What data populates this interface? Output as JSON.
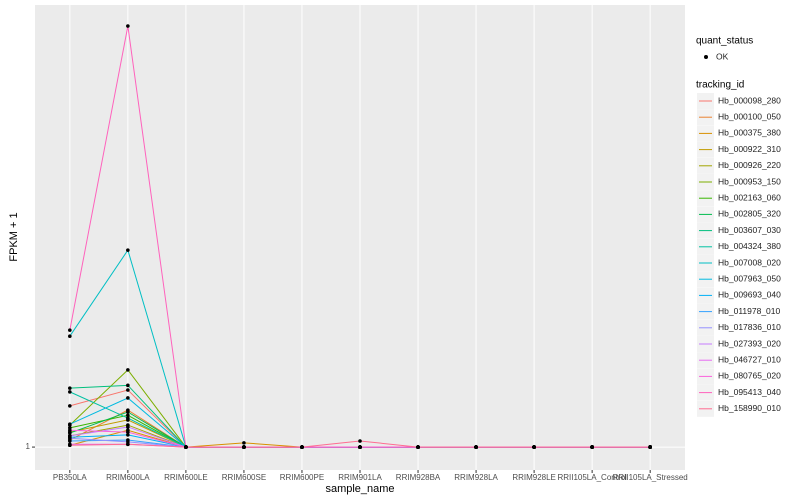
{
  "chart_data": {
    "type": "line",
    "x_label": "sample_name",
    "y_label": "FPKM + 1",
    "categories": [
      "PB350LA",
      "RRIM600LA",
      "RRIM600LE",
      "RRIM600SE",
      "RRIM600PE",
      "RRIM901LA",
      "RRIM928BA",
      "RRIM928LA",
      "RRIM928LE",
      "RRII105LA_Control",
      "RRII105LA_Stressed"
    ],
    "ylim": [
      0.51,
      10.45
    ],
    "yticks": [
      1
    ],
    "grid": true,
    "point_legend": {
      "title": "quant_status",
      "label": "OK"
    },
    "legend_title": "tracking_id",
    "series": [
      {
        "name": "Hb_000098_280",
        "color": "#F8766D",
        "values": [
          1.88,
          2.22,
          1,
          1,
          1,
          1,
          1,
          1,
          1,
          1,
          1
        ]
      },
      {
        "name": "Hb_000100_050",
        "color": "#EA8331",
        "values": [
          1.15,
          1.79,
          1,
          1,
          1,
          1,
          1,
          1,
          1,
          1,
          1
        ]
      },
      {
        "name": "Hb_000375_380",
        "color": "#D89000",
        "values": [
          1.04,
          1.36,
          1,
          1.09,
          1,
          1,
          1,
          1,
          1,
          1,
          1
        ]
      },
      {
        "name": "Hb_000922_310",
        "color": "#C09B00",
        "values": [
          1.32,
          1.58,
          1,
          1,
          1,
          1,
          1,
          1,
          1,
          1,
          1
        ]
      },
      {
        "name": "Hb_000926_220",
        "color": "#A3A500",
        "values": [
          1.24,
          1.47,
          1,
          1,
          1,
          1,
          1,
          1,
          1,
          1,
          1
        ]
      },
      {
        "name": "Hb_000953_150",
        "color": "#7CAE00",
        "values": [
          1.47,
          2.65,
          1,
          1,
          1,
          1,
          1,
          1,
          1,
          1,
          1
        ]
      },
      {
        "name": "Hb_002163_060",
        "color": "#39B600",
        "values": [
          1.41,
          1.68,
          1,
          1,
          1,
          1,
          1,
          1,
          1,
          1,
          1
        ]
      },
      {
        "name": "Hb_002805_320",
        "color": "#00BB4E",
        "values": [
          1.3,
          1.75,
          1,
          1,
          1,
          1,
          1,
          1,
          1,
          1,
          1
        ]
      },
      {
        "name": "Hb_003607_030",
        "color": "#00BF7D",
        "values": [
          2.26,
          2.32,
          1,
          1,
          1,
          1,
          1,
          1,
          1,
          1,
          1
        ]
      },
      {
        "name": "Hb_004324_380",
        "color": "#00C1A3",
        "values": [
          2.18,
          1.62,
          1,
          1,
          1,
          1,
          1,
          1,
          1,
          1,
          1
        ]
      },
      {
        "name": "Hb_007008_020",
        "color": "#00BFC4",
        "values": [
          3.37,
          5.21,
          1,
          1,
          1,
          1,
          1,
          1,
          1,
          1,
          1
        ]
      },
      {
        "name": "Hb_007963_050",
        "color": "#00BAE0",
        "values": [
          1.49,
          2.05,
          1,
          1,
          1,
          1,
          1,
          1,
          1,
          1,
          1
        ]
      },
      {
        "name": "Hb_009693_040",
        "color": "#00B0F6",
        "values": [
          1.21,
          1.26,
          1,
          1,
          1,
          1,
          1,
          1,
          1,
          1,
          1
        ]
      },
      {
        "name": "Hb_011978_010",
        "color": "#35A2FF",
        "values": [
          1.13,
          1.15,
          1,
          1,
          1,
          1,
          1,
          1,
          1,
          1,
          1
        ]
      },
      {
        "name": "Hb_017836_010",
        "color": "#9590FF",
        "values": [
          1.19,
          1.11,
          1,
          1,
          1,
          1,
          1,
          1,
          1,
          1,
          1
        ]
      },
      {
        "name": "Hb_027393_020",
        "color": "#C77CFF",
        "values": [
          1.24,
          1.43,
          1,
          1,
          1,
          1,
          1,
          1,
          1,
          1,
          1
        ]
      },
      {
        "name": "Hb_046727_010",
        "color": "#E76BF3",
        "values": [
          1.06,
          1.06,
          1,
          1,
          1,
          1,
          1,
          1,
          1,
          1,
          1
        ]
      },
      {
        "name": "Hb_080765_020",
        "color": "#FA62DB",
        "values": [
          1.36,
          1.32,
          1,
          1,
          1,
          1,
          1,
          1,
          1,
          1,
          1
        ]
      },
      {
        "name": "Hb_095413_040",
        "color": "#FF62BC",
        "values": [
          3.5,
          10,
          1,
          1,
          1,
          1,
          1,
          1,
          1,
          1,
          1
        ]
      },
      {
        "name": "Hb_158990_010",
        "color": "#FF6C91",
        "values": [
          1.04,
          1.06,
          1,
          1,
          1,
          1.13,
          1,
          1,
          1,
          1,
          1
        ]
      }
    ]
  }
}
